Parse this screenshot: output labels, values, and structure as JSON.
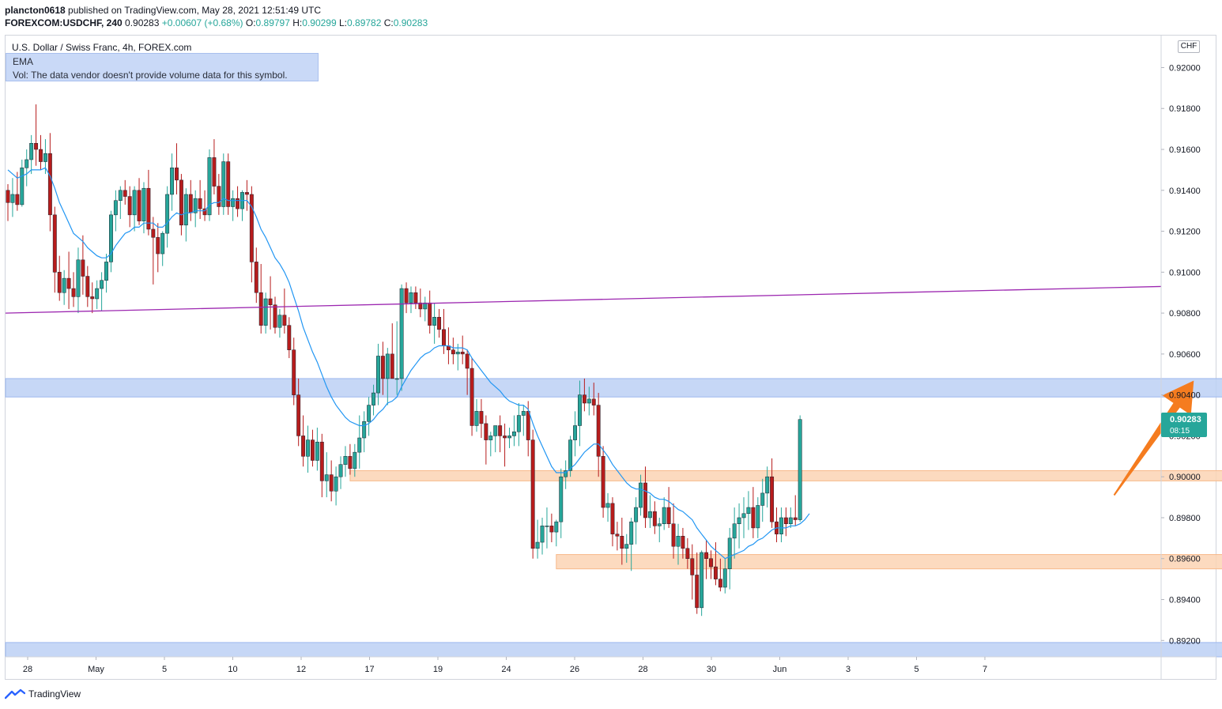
{
  "header": {
    "publisher": "plancton0618",
    "published_text": " published on TradingView.com, May 28, 2021 12:51:49 UTC",
    "symbol": "FOREXCOM:USDCHF, 240",
    "last": "0.90283",
    "change": "+0.00607 (+0.68%)",
    "o_label": "O:",
    "o_value": "0.89797",
    "h_label": "H:",
    "h_value": "0.90299",
    "l_label": "L:",
    "l_value": "0.89782",
    "c_label": "C:",
    "c_value": "0.90283"
  },
  "pane": {
    "title": "U.S. Dollar / Swiss Franc, 4h, FOREX.com",
    "legend_ema": "EMA",
    "legend_vol": "Vol: The data vendor doesn't provide volume data for this symbol.",
    "currency": "CHF"
  },
  "footer": {
    "brand": "TradingView"
  },
  "colors": {
    "up": "#26a69a",
    "down": "#b71c1c",
    "ema": "#2196f3",
    "trendline": "#9c27b0",
    "resistance_zone": "#bcd0f5",
    "support_zone": "#fbd3b4",
    "arrow": "#f57c1f",
    "price_tag": "#26a69a"
  },
  "chart_data": {
    "type": "candlestick",
    "y_axis": {
      "range": [
        0.8912,
        0.9211
      ],
      "ticks": [
        "0.92000",
        "0.91800",
        "0.91600",
        "0.91400",
        "0.91200",
        "0.91000",
        "0.90800",
        "0.90600",
        "0.90400",
        "0.90200",
        "0.90000",
        "0.89800",
        "0.89600",
        "0.89400",
        "0.89200"
      ]
    },
    "x_axis": {
      "ticks": [
        "28",
        "May",
        "5",
        "10",
        "12",
        "17",
        "19",
        "24",
        "26",
        "28",
        "30",
        "Jun",
        "3",
        "5",
        "7"
      ]
    },
    "last_price": {
      "value": "0.90283",
      "countdown": "08:15"
    },
    "zones": [
      {
        "kind": "resistance",
        "from": 0.9039,
        "to": 0.9048,
        "start": 0,
        "end": 315
      },
      {
        "kind": "support",
        "from": 0.8998,
        "to": 0.9003,
        "start": 73,
        "end": 315
      },
      {
        "kind": "support",
        "from": 0.8955,
        "to": 0.8962,
        "start": 117,
        "end": 317
      },
      {
        "kind": "support-blue",
        "from": 0.8912,
        "to": 0.8919,
        "start": 0,
        "end": 280
      }
    ],
    "trendline": {
      "start_index": 0,
      "start_value": 0.908,
      "end_index": 341,
      "end_value": 0.9093
    },
    "arrow": {
      "from_index": 236,
      "from_value": 0.8991,
      "to_index": 253,
      "to_value": 0.9047
    },
    "candles": [
      [
        0.914,
        0.9143,
        0.9125,
        0.9134
      ],
      [
        0.9134,
        0.9146,
        0.9127,
        0.9138
      ],
      [
        0.9138,
        0.9149,
        0.913,
        0.9133
      ],
      [
        0.9133,
        0.9155,
        0.9132,
        0.9151
      ],
      [
        0.9151,
        0.916,
        0.9142,
        0.9155
      ],
      [
        0.9155,
        0.9167,
        0.9148,
        0.9163
      ],
      [
        0.9163,
        0.9182,
        0.9152,
        0.916
      ],
      [
        0.916,
        0.9167,
        0.915,
        0.9154
      ],
      [
        0.9154,
        0.9165,
        0.9148,
        0.9158
      ],
      [
        0.9158,
        0.9168,
        0.912,
        0.9128
      ],
      [
        0.9128,
        0.9132,
        0.909,
        0.91
      ],
      [
        0.91,
        0.9108,
        0.9086,
        0.909
      ],
      [
        0.909,
        0.9101,
        0.9084,
        0.9097
      ],
      [
        0.9097,
        0.911,
        0.9082,
        0.9092
      ],
      [
        0.9092,
        0.91,
        0.9083,
        0.9088
      ],
      [
        0.9088,
        0.9112,
        0.908,
        0.9106
      ],
      [
        0.9106,
        0.9118,
        0.9089,
        0.9098
      ],
      [
        0.9098,
        0.9103,
        0.9083,
        0.9088
      ],
      [
        0.9088,
        0.9095,
        0.908,
        0.9087
      ],
      [
        0.9087,
        0.9096,
        0.9082,
        0.9092
      ],
      [
        0.9092,
        0.91,
        0.9081,
        0.9096
      ],
      [
        0.9096,
        0.9109,
        0.909,
        0.9105
      ],
      [
        0.9105,
        0.913,
        0.91,
        0.9128
      ],
      [
        0.9128,
        0.914,
        0.912,
        0.9135
      ],
      [
        0.9135,
        0.9142,
        0.9126,
        0.914
      ],
      [
        0.914,
        0.9145,
        0.9133,
        0.9137
      ],
      [
        0.9137,
        0.9142,
        0.9122,
        0.9128
      ],
      [
        0.9128,
        0.9142,
        0.912,
        0.914
      ],
      [
        0.914,
        0.9146,
        0.9123,
        0.9125
      ],
      [
        0.9125,
        0.9144,
        0.9119,
        0.9141
      ],
      [
        0.9141,
        0.915,
        0.9118,
        0.9121
      ],
      [
        0.9121,
        0.9127,
        0.9094,
        0.9117
      ],
      [
        0.9117,
        0.9124,
        0.91,
        0.9109
      ],
      [
        0.9109,
        0.912,
        0.9103,
        0.9119
      ],
      [
        0.9119,
        0.9142,
        0.9112,
        0.9138
      ],
      [
        0.9138,
        0.9158,
        0.913,
        0.9151
      ],
      [
        0.9151,
        0.9163,
        0.9138,
        0.9145
      ],
      [
        0.9145,
        0.9148,
        0.9118,
        0.9123
      ],
      [
        0.9123,
        0.9141,
        0.9115,
        0.9138
      ],
      [
        0.9138,
        0.9145,
        0.9125,
        0.9129
      ],
      [
        0.9129,
        0.914,
        0.9122,
        0.9136
      ],
      [
        0.9136,
        0.9145,
        0.9126,
        0.9131
      ],
      [
        0.9131,
        0.914,
        0.9125,
        0.9128
      ],
      [
        0.9128,
        0.916,
        0.9125,
        0.9156
      ],
      [
        0.9156,
        0.9165,
        0.9138,
        0.9142
      ],
      [
        0.9142,
        0.9148,
        0.9128,
        0.9132
      ],
      [
        0.9132,
        0.9158,
        0.9128,
        0.9154
      ],
      [
        0.9154,
        0.9158,
        0.9128,
        0.9132
      ],
      [
        0.9132,
        0.914,
        0.9125,
        0.9136
      ],
      [
        0.9136,
        0.9142,
        0.9127,
        0.9131
      ],
      [
        0.9131,
        0.914,
        0.9125,
        0.9139
      ],
      [
        0.9139,
        0.9145,
        0.913,
        0.9138
      ],
      [
        0.9138,
        0.9142,
        0.9095,
        0.9105
      ],
      [
        0.9105,
        0.9112,
        0.9085,
        0.909
      ],
      [
        0.909,
        0.9104,
        0.907,
        0.9074
      ],
      [
        0.9074,
        0.909,
        0.907,
        0.9087
      ],
      [
        0.9087,
        0.9098,
        0.9072,
        0.9084
      ],
      [
        0.9084,
        0.9088,
        0.907,
        0.9073
      ],
      [
        0.9073,
        0.9082,
        0.9068,
        0.9079
      ],
      [
        0.9079,
        0.9092,
        0.907,
        0.9074
      ],
      [
        0.9074,
        0.9078,
        0.9058,
        0.9062
      ],
      [
        0.9062,
        0.9068,
        0.9035,
        0.904
      ],
      [
        0.904,
        0.9048,
        0.9015,
        0.902
      ],
      [
        0.902,
        0.903,
        0.9005,
        0.901
      ],
      [
        0.901,
        0.9025,
        0.9002,
        0.9018
      ],
      [
        0.9018,
        0.9023,
        0.9005,
        0.9008
      ],
      [
        0.9008,
        0.9024,
        0.9003,
        0.9017
      ],
      [
        0.9017,
        0.9021,
        0.899,
        0.8998
      ],
      [
        0.8998,
        0.9012,
        0.899,
        0.9001
      ],
      [
        0.9001,
        0.9008,
        0.8988,
        0.8993
      ],
      [
        0.8993,
        0.9005,
        0.8986,
        0.9
      ],
      [
        0.9,
        0.901,
        0.8994,
        0.9006
      ],
      [
        0.9006,
        0.9015,
        0.9,
        0.901
      ],
      [
        0.901,
        0.9016,
        0.9001,
        0.9004
      ],
      [
        0.9004,
        0.9016,
        0.9,
        0.9012
      ],
      [
        0.9012,
        0.903,
        0.9004,
        0.9019
      ],
      [
        0.9019,
        0.9032,
        0.9012,
        0.9027
      ],
      [
        0.9027,
        0.9039,
        0.902,
        0.9035
      ],
      [
        0.9035,
        0.9045,
        0.903,
        0.9041
      ],
      [
        0.9041,
        0.9065,
        0.9035,
        0.9059
      ],
      [
        0.9059,
        0.9066,
        0.904,
        0.9048
      ],
      [
        0.9048,
        0.9063,
        0.9035,
        0.906
      ],
      [
        0.906,
        0.9075,
        0.905,
        0.9048
      ],
      [
        0.9048,
        0.9076,
        0.904,
        0.9048
      ],
      [
        0.9048,
        0.9094,
        0.9042,
        0.9092
      ],
      [
        0.9092,
        0.9095,
        0.908,
        0.9085
      ],
      [
        0.9085,
        0.9093,
        0.908,
        0.909
      ],
      [
        0.909,
        0.9093,
        0.9082,
        0.9085
      ],
      [
        0.9085,
        0.9092,
        0.9078,
        0.9082
      ],
      [
        0.9082,
        0.9088,
        0.9076,
        0.9085
      ],
      [
        0.9085,
        0.9091,
        0.907,
        0.9074
      ],
      [
        0.9074,
        0.9085,
        0.9065,
        0.9078
      ],
      [
        0.9078,
        0.9082,
        0.9068,
        0.9072
      ],
      [
        0.9072,
        0.9082,
        0.906,
        0.9064
      ],
      [
        0.9064,
        0.9073,
        0.9055,
        0.9062
      ],
      [
        0.9062,
        0.9068,
        0.9055,
        0.906
      ],
      [
        0.906,
        0.9065,
        0.9052,
        0.9061
      ],
      [
        0.9061,
        0.9069,
        0.9055,
        0.906
      ],
      [
        0.906,
        0.9062,
        0.904,
        0.9053
      ],
      [
        0.9053,
        0.9058,
        0.902,
        0.9025
      ],
      [
        0.9025,
        0.9038,
        0.9022,
        0.9032
      ],
      [
        0.9032,
        0.9038,
        0.9019,
        0.9026
      ],
      [
        0.9026,
        0.903,
        0.9006,
        0.9018
      ],
      [
        0.9018,
        0.9022,
        0.901,
        0.902
      ],
      [
        0.902,
        0.9025,
        0.9012,
        0.9025
      ],
      [
        0.9025,
        0.903,
        0.9012,
        0.902
      ],
      [
        0.902,
        0.9026,
        0.9005,
        0.9019
      ],
      [
        0.9019,
        0.9024,
        0.9014,
        0.902
      ],
      [
        0.902,
        0.903,
        0.9015,
        0.9022
      ],
      [
        0.9022,
        0.9036,
        0.9015,
        0.903
      ],
      [
        0.903,
        0.9035,
        0.902,
        0.9032
      ],
      [
        0.9032,
        0.9037,
        0.901,
        0.9018
      ],
      [
        0.9018,
        0.9023,
        0.896,
        0.8965
      ],
      [
        0.8965,
        0.8979,
        0.896,
        0.8968
      ],
      [
        0.8968,
        0.898,
        0.8962,
        0.8976
      ],
      [
        0.8976,
        0.8985,
        0.8965,
        0.8976
      ],
      [
        0.8976,
        0.8982,
        0.8968,
        0.8973
      ],
      [
        0.8973,
        0.8979,
        0.8966,
        0.8978
      ],
      [
        0.8978,
        0.9004,
        0.897,
        0.9
      ],
      [
        0.9,
        0.9008,
        0.8994,
        0.9003
      ],
      [
        0.9003,
        0.902,
        0.9,
        0.9018
      ],
      [
        0.9018,
        0.9032,
        0.901,
        0.9025
      ],
      [
        0.9025,
        0.9047,
        0.9015,
        0.904
      ],
      [
        0.904,
        0.9048,
        0.9032,
        0.9036
      ],
      [
        0.9036,
        0.9044,
        0.903,
        0.9038
      ],
      [
        0.9038,
        0.9046,
        0.903,
        0.9035
      ],
      [
        0.9035,
        0.9041,
        0.9,
        0.901
      ],
      [
        0.901,
        0.9015,
        0.898,
        0.8985
      ],
      [
        0.8985,
        0.8992,
        0.8978,
        0.8987
      ],
      [
        0.8987,
        0.899,
        0.8966,
        0.8972
      ],
      [
        0.8972,
        0.8978,
        0.8964,
        0.8971
      ],
      [
        0.8971,
        0.898,
        0.8957,
        0.8965
      ],
      [
        0.8965,
        0.8972,
        0.8958,
        0.8967
      ],
      [
        0.8967,
        0.898,
        0.8954,
        0.8978
      ],
      [
        0.8978,
        0.899,
        0.8967,
        0.8985
      ],
      [
        0.8985,
        0.9001,
        0.8981,
        0.8997
      ],
      [
        0.8997,
        0.9005,
        0.8975,
        0.898
      ],
      [
        0.898,
        0.8991,
        0.8975,
        0.8983
      ],
      [
        0.8983,
        0.8988,
        0.8972,
        0.8976
      ],
      [
        0.8976,
        0.898,
        0.8968,
        0.8977
      ],
      [
        0.8977,
        0.899,
        0.8974,
        0.8985
      ],
      [
        0.8985,
        0.8995,
        0.8975,
        0.8977
      ],
      [
        0.8977,
        0.8987,
        0.896,
        0.8966
      ],
      [
        0.8966,
        0.8977,
        0.8957,
        0.8971
      ],
      [
        0.8971,
        0.8975,
        0.896,
        0.8965
      ],
      [
        0.8965,
        0.897,
        0.8955,
        0.896
      ],
      [
        0.896,
        0.8967,
        0.894,
        0.8952
      ],
      [
        0.8952,
        0.8963,
        0.8933,
        0.8936
      ],
      [
        0.8936,
        0.8964,
        0.8932,
        0.8963
      ],
      [
        0.8963,
        0.8969,
        0.895,
        0.896
      ],
      [
        0.896,
        0.8964,
        0.895,
        0.8956
      ],
      [
        0.8956,
        0.8968,
        0.8947,
        0.895
      ],
      [
        0.895,
        0.896,
        0.8944,
        0.8946
      ],
      [
        0.8946,
        0.896,
        0.8943,
        0.8955
      ],
      [
        0.8955,
        0.8975,
        0.8945,
        0.897
      ],
      [
        0.897,
        0.8985,
        0.896,
        0.8977
      ],
      [
        0.8977,
        0.8987,
        0.8965,
        0.898
      ],
      [
        0.898,
        0.899,
        0.897,
        0.8982
      ],
      [
        0.8982,
        0.8993,
        0.8974,
        0.8985
      ],
      [
        0.8985,
        0.8995,
        0.897,
        0.8975
      ],
      [
        0.8975,
        0.899,
        0.897,
        0.8986
      ],
      [
        0.8986,
        0.8999,
        0.8978,
        0.8992
      ],
      [
        0.8992,
        0.9005,
        0.8985,
        0.9
      ],
      [
        0.9,
        0.9009,
        0.8975,
        0.8978
      ],
      [
        0.8978,
        0.8985,
        0.8968,
        0.8972
      ],
      [
        0.8972,
        0.8985,
        0.8968,
        0.898
      ],
      [
        0.898,
        0.8985,
        0.8971,
        0.8977
      ],
      [
        0.8977,
        0.8985,
        0.8975,
        0.898
      ],
      [
        0.898,
        0.8991,
        0.8976,
        0.8979
      ],
      [
        0.8979,
        0.903,
        0.8978,
        0.9028
      ]
    ],
    "ema": [
      0.915,
      0.9148,
      0.9146,
      0.9147,
      0.9148,
      0.915,
      0.915,
      0.915,
      0.9151,
      0.9147,
      0.9141,
      0.9134,
      0.9129,
      0.9124,
      0.9119,
      0.9117,
      0.9115,
      0.9112,
      0.911,
      0.9108,
      0.9107,
      0.9107,
      0.9109,
      0.9113,
      0.9116,
      0.9119,
      0.912,
      0.9122,
      0.9122,
      0.9124,
      0.9124,
      0.9124,
      0.9122,
      0.9122,
      0.9124,
      0.9127,
      0.9129,
      0.9128,
      0.9129,
      0.9129,
      0.913,
      0.913,
      0.913,
      0.9133,
      0.9134,
      0.9134,
      0.9136,
      0.9135,
      0.9135,
      0.9135,
      0.9135,
      0.9135,
      0.9132,
      0.9127,
      0.9121,
      0.9117,
      0.9112,
      0.9107,
      0.9104,
      0.91,
      0.9095,
      0.9088,
      0.9081,
      0.9073,
      0.9067,
      0.9061,
      0.9056,
      0.905,
      0.9044,
      0.9039,
      0.9035,
      0.9032,
      0.9029,
      0.9027,
      0.9026,
      0.9025,
      0.9025,
      0.9026,
      0.9028,
      0.9031,
      0.9033,
      0.9036,
      0.9037,
      0.9039,
      0.9044,
      0.9048,
      0.9052,
      0.9055,
      0.9058,
      0.906,
      0.9061,
      0.9063,
      0.9064,
      0.9064,
      0.9064,
      0.9063,
      0.9063,
      0.9063,
      0.9062,
      0.9058,
      0.9055,
      0.9052,
      0.9049,
      0.9046,
      0.9044,
      0.9042,
      0.9039,
      0.9037,
      0.9036,
      0.9035,
      0.9035,
      0.9033,
      0.9026,
      0.902,
      0.9015,
      0.901,
      0.9005,
      0.9002,
      0.9002,
      0.9002,
      0.9004,
      0.9006,
      0.9009,
      0.9012,
      0.9014,
      0.9016,
      0.9016,
      0.9013,
      0.901,
      0.9006,
      0.9003,
      0.9,
      0.8997,
      0.8995,
      0.8994,
      0.8994,
      0.8993,
      0.8992,
      0.899,
      0.8989,
      0.8989,
      0.8988,
      0.8986,
      0.8984,
      0.8983,
      0.8981,
      0.8979,
      0.8975,
      0.8972,
      0.8969,
      0.8966,
      0.8964,
      0.8962,
      0.896,
      0.8961,
      0.8962,
      0.8963,
      0.8964,
      0.8966,
      0.8967,
      0.8969,
      0.897,
      0.8972,
      0.8974,
      0.8975,
      0.8975,
      0.8975,
      0.8976,
      0.8976,
      0.8977,
      0.8979,
      0.8982
    ]
  }
}
